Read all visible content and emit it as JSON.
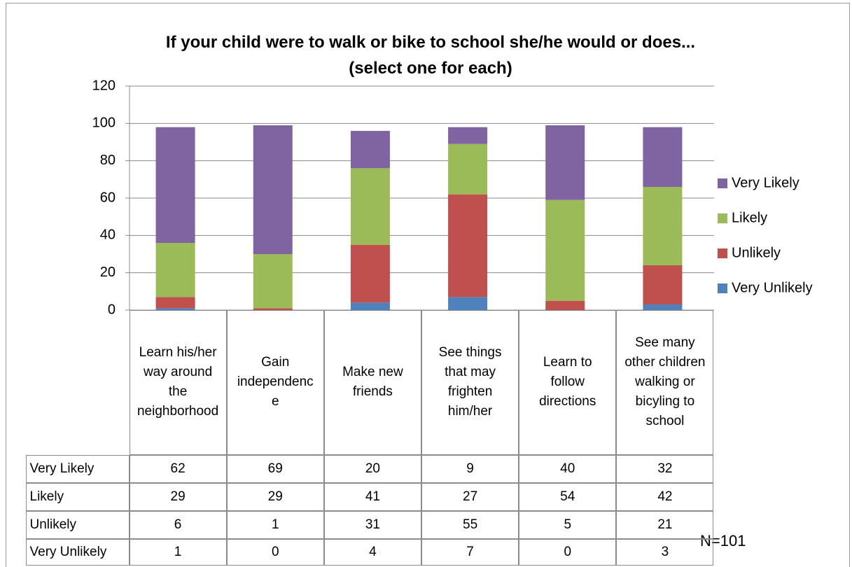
{
  "chart_data": {
    "type": "stacked_bar",
    "title": "If your child were to walk or bike to school she/he would or does...(select one for each)",
    "categories": [
      "Learn his/her way around the neighborhood",
      "Gain independence",
      "Make new friends",
      "See things that may frighten him/her",
      "Learn to follow directions",
      "See many other children walking or bicyling to school"
    ],
    "series": [
      {
        "name": "Very Likely",
        "color": "#8064a2",
        "values": [
          62,
          69,
          20,
          9,
          40,
          32
        ]
      },
      {
        "name": "Likely",
        "color": "#9bbb59",
        "values": [
          29,
          29,
          41,
          27,
          54,
          42
        ]
      },
      {
        "name": "Unlikely",
        "color": "#c0504d",
        "values": [
          6,
          1,
          31,
          55,
          5,
          21
        ]
      },
      {
        "name": "Very Unlikely",
        "color": "#4f81bd",
        "values": [
          1,
          0,
          4,
          7,
          0,
          3
        ]
      }
    ],
    "ylim": [
      0,
      120
    ],
    "yticks": [
      0,
      20,
      40,
      60,
      80,
      100,
      120
    ],
    "grid": true,
    "legend": "right",
    "note": "N=101"
  }
}
